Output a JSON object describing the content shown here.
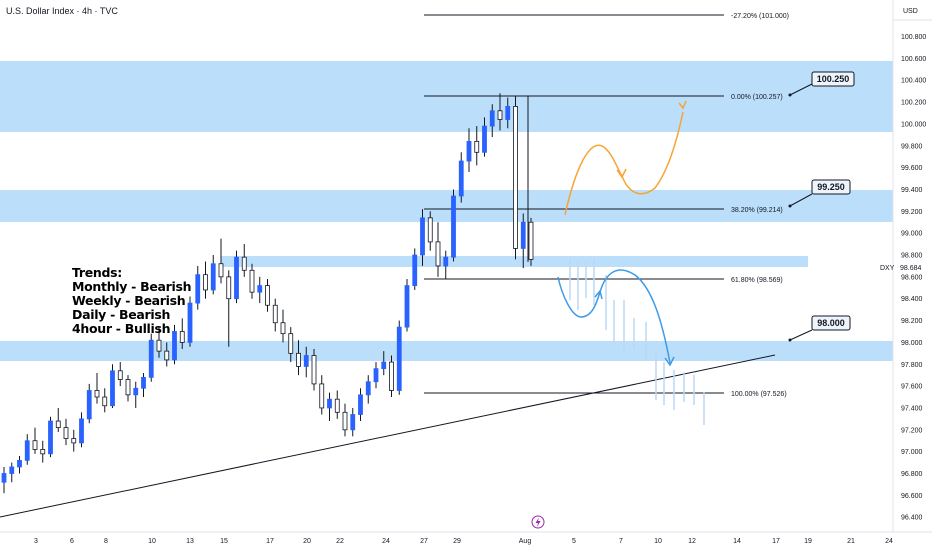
{
  "header": {
    "title": "U.S. Dollar Index · 4h · TVC"
  },
  "price_axis": {
    "currency_label": "USD",
    "ticks": [
      "100.800",
      "100.600",
      "100.400",
      "100.200",
      "100.000",
      "99.800",
      "99.600",
      "99.400",
      "99.200",
      "99.000",
      "98.800",
      "98.600",
      "98.400",
      "98.200",
      "98.000",
      "97.800",
      "97.600",
      "97.400",
      "97.200",
      "97.000",
      "96.800",
      "96.600",
      "96.400"
    ],
    "symbol_label": "DXY",
    "last_price": "98.684"
  },
  "time_axis": {
    "ticks": [
      "3",
      "6",
      "8",
      "10",
      "13",
      "15",
      "17",
      "20",
      "22",
      "24",
      "27",
      "29",
      "Aug",
      "5",
      "7",
      "10",
      "12",
      "14",
      "17",
      "19",
      "21",
      "24"
    ]
  },
  "trends": {
    "lines": [
      "Trends:",
      "Monthly - Bearish",
      "Weekly - Bearish",
      "Daily - Bearish",
      "4hour - Bullish"
    ]
  },
  "callouts": [
    {
      "label": "100.250"
    },
    {
      "label": "99.250"
    },
    {
      "label": "98.000"
    }
  ],
  "fib_levels": [
    {
      "label": "-27.20% (101.000)"
    },
    {
      "label": "0.00% (100.257)"
    },
    {
      "label": "38.20% (99.214)"
    },
    {
      "label": "61.80% (98.569)"
    },
    {
      "label": "100.00% (97.526)"
    }
  ],
  "colors": {
    "zone": "#bbdefb",
    "bull_candle": "#2962ff",
    "bear_candle": "#ffffff",
    "wick": "#131722",
    "orange_path": "#f7a531",
    "blue_path": "#3d9ae8",
    "callout_bg": "#eef4fb"
  },
  "icons": {
    "event": "lightning-icon"
  },
  "chart_data": {
    "type": "candlestick",
    "title": "U.S. Dollar Index · 4h · TVC",
    "symbol": "DXY",
    "ylim": [
      96.3,
      101.15
    ],
    "x_range": [
      "Jul 2",
      "Aug 25"
    ],
    "zones": [
      {
        "from": 100.0,
        "to": 100.65
      },
      {
        "from": 99.08,
        "to": 99.38
      },
      {
        "from": 98.68,
        "to": 98.78
      },
      {
        "from": 97.82,
        "to": 98.02
      }
    ],
    "trendline": {
      "from": [
        "Jul 2",
        96.38
      ],
      "to": [
        "Aug 17",
        97.88
      ]
    },
    "fib_retracement": [
      {
        "level": -0.272,
        "price": 101.0
      },
      {
        "level": 0.0,
        "price": 100.257
      },
      {
        "level": 0.382,
        "price": 99.214
      },
      {
        "level": 0.618,
        "price": 98.569
      },
      {
        "level": 1.0,
        "price": 97.526
      }
    ],
    "last_price": 98.684,
    "candles_ohlc": [
      [
        96.72,
        96.86,
        96.62,
        96.8
      ],
      [
        96.8,
        96.9,
        96.72,
        96.86
      ],
      [
        96.86,
        96.96,
        96.8,
        96.92
      ],
      [
        96.92,
        97.16,
        96.88,
        97.1
      ],
      [
        97.1,
        97.22,
        96.98,
        97.02
      ],
      [
        97.02,
        97.1,
        96.9,
        96.98
      ],
      [
        96.98,
        97.32,
        96.95,
        97.28
      ],
      [
        97.28,
        97.4,
        97.18,
        97.22
      ],
      [
        97.22,
        97.3,
        97.06,
        97.12
      ],
      [
        97.12,
        97.2,
        97.0,
        97.08
      ],
      [
        97.08,
        97.36,
        97.04,
        97.3
      ],
      [
        97.3,
        97.62,
        97.26,
        97.56
      ],
      [
        97.56,
        97.72,
        97.44,
        97.5
      ],
      [
        97.5,
        97.58,
        97.36,
        97.42
      ],
      [
        97.42,
        97.8,
        97.4,
        97.74
      ],
      [
        97.74,
        97.82,
        97.6,
        97.66
      ],
      [
        97.66,
        97.7,
        97.46,
        97.52
      ],
      [
        97.52,
        97.64,
        97.4,
        97.58
      ],
      [
        97.58,
        97.72,
        97.5,
        97.68
      ],
      [
        97.68,
        98.08,
        97.64,
        98.02
      ],
      [
        98.02,
        98.14,
        97.86,
        97.92
      ],
      [
        97.92,
        98.0,
        97.78,
        97.84
      ],
      [
        97.84,
        98.16,
        97.8,
        98.1
      ],
      [
        98.1,
        98.22,
        97.94,
        98.0
      ],
      [
        98.0,
        98.42,
        97.96,
        98.36
      ],
      [
        98.36,
        98.7,
        98.3,
        98.62
      ],
      [
        98.62,
        98.74,
        98.4,
        98.48
      ],
      [
        98.48,
        98.8,
        98.44,
        98.72
      ],
      [
        98.72,
        98.95,
        98.54,
        98.6
      ],
      [
        98.6,
        98.66,
        97.96,
        98.4
      ],
      [
        98.4,
        98.84,
        98.36,
        98.78
      ],
      [
        98.78,
        98.9,
        98.6,
        98.66
      ],
      [
        98.66,
        98.72,
        98.4,
        98.46
      ],
      [
        98.46,
        98.6,
        98.36,
        98.52
      ],
      [
        98.52,
        98.58,
        98.28,
        98.34
      ],
      [
        98.34,
        98.4,
        98.1,
        98.18
      ],
      [
        98.18,
        98.3,
        98.0,
        98.08
      ],
      [
        98.08,
        98.14,
        97.82,
        97.9
      ],
      [
        97.9,
        98.02,
        97.7,
        97.78
      ],
      [
        97.78,
        97.96,
        97.68,
        97.88
      ],
      [
        97.88,
        97.94,
        97.56,
        97.62
      ],
      [
        97.62,
        97.7,
        97.34,
        97.4
      ],
      [
        97.4,
        97.54,
        97.28,
        97.48
      ],
      [
        97.48,
        97.56,
        97.3,
        97.36
      ],
      [
        97.36,
        97.44,
        97.14,
        97.2
      ],
      [
        97.2,
        97.4,
        97.14,
        97.34
      ],
      [
        97.34,
        97.58,
        97.28,
        97.52
      ],
      [
        97.52,
        97.7,
        97.44,
        97.64
      ],
      [
        97.64,
        97.82,
        97.58,
        97.76
      ],
      [
        97.76,
        97.92,
        97.7,
        97.82
      ],
      [
        97.82,
        97.88,
        97.5,
        97.56
      ],
      [
        97.56,
        98.2,
        97.52,
        98.14
      ],
      [
        98.14,
        98.58,
        98.1,
        98.52
      ],
      [
        98.52,
        98.86,
        98.48,
        98.8
      ],
      [
        98.8,
        99.22,
        98.7,
        99.14
      ],
      [
        99.14,
        99.2,
        98.84,
        98.92
      ],
      [
        98.92,
        99.1,
        98.6,
        98.7
      ],
      [
        98.7,
        98.84,
        98.58,
        98.78
      ],
      [
        98.78,
        99.4,
        98.74,
        99.34
      ],
      [
        99.34,
        99.74,
        99.28,
        99.66
      ],
      [
        99.66,
        99.96,
        99.56,
        99.84
      ],
      [
        99.84,
        99.98,
        99.62,
        99.74
      ],
      [
        99.74,
        100.06,
        99.7,
        99.98
      ],
      [
        99.98,
        100.18,
        99.88,
        100.12
      ],
      [
        100.12,
        100.28,
        99.94,
        100.04
      ],
      [
        100.04,
        100.24,
        99.96,
        100.16
      ],
      [
        100.16,
        100.26,
        98.76,
        98.86
      ],
      [
        98.86,
        99.18,
        98.68,
        99.1
      ],
      [
        99.1,
        99.14,
        98.7,
        98.76
      ]
    ],
    "projections": [
      {
        "color": "orange",
        "description": "upward path",
        "points": [
          [
            99.15
          ],
          [
            99.82
          ],
          [
            99.45
          ],
          [
            99.4
          ],
          [
            100.2
          ]
        ]
      },
      {
        "color": "blue",
        "description": "downward path",
        "points": [
          [
            98.57
          ],
          [
            98.25
          ],
          [
            98.45
          ],
          [
            98.68
          ],
          [
            97.76
          ]
        ]
      }
    ]
  }
}
